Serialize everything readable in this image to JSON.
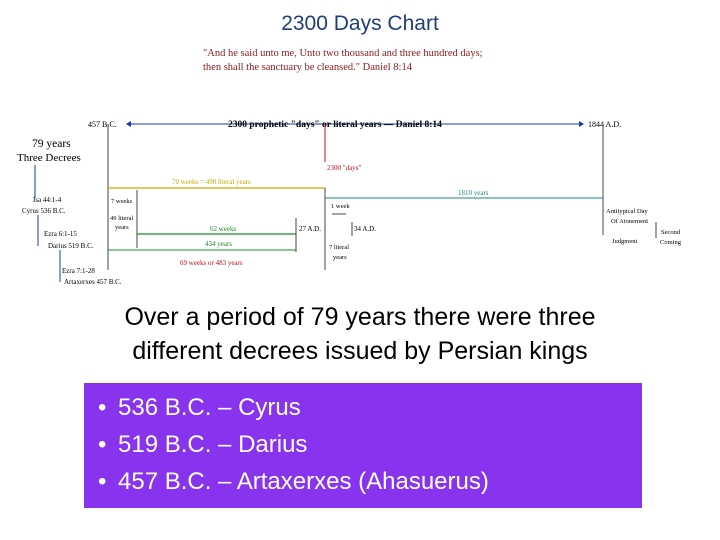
{
  "title": "2300 Days Chart",
  "quote": {
    "line1": "\"And he said unto me, Unto two thousand and three hundred days;",
    "line2": "then shall the sanctuary be cleansed.\" Daniel 8:14"
  },
  "diagram": {
    "start_label": "457 B.C.",
    "heading": "2300 prophetic \"days\" or literal years — Daniel  8:14",
    "end_label": "1844 A.D.",
    "years_label": "79 years",
    "decrees_label": "Three Decrees",
    "isa_ref": "Isa 44:1-4",
    "cyrus": "Cyrus 536 B.C.",
    "ezra_1": "Ezra 6:1-15",
    "darius": "Darius 519 B.C.",
    "ezra_2": "Ezra 7:1-28",
    "artaxerxes": "Artaxerxes 457 B.C.",
    "days_2300": "2300 \"days\"",
    "weeks_70": "70 weeks = 490 literal years",
    "years_1810": "1810 years",
    "weeks_7": "7 weeks",
    "years_49a": "49 literal",
    "years_49b": "years",
    "weeks_62": "62 weeks",
    "years_434": "434 years",
    "weeks_69": "69 weeks or 483 years",
    "ad_27": "27 A.D.",
    "ad_34": "34 A.D.",
    "week_1": "1 week",
    "literal_7a": "7 literal",
    "literal_7b": "years",
    "antitypical_a": "Antitypical Day",
    "antitypical_b": "Of Atonement",
    "second_a": "Second",
    "second_b": "Coming",
    "judgment": "Judgment"
  },
  "caption": {
    "line1": "Over a period of 79 years there were three",
    "line2": "different decrees issued by Persian kings"
  },
  "decrees": [
    "536 B.C. – Cyrus",
    "519 B.C. – Darius",
    "457 B.C. – Artaxerxes (Ahasuerus)"
  ],
  "colors": {
    "title": "#1f3d7a",
    "quote": "#8b1a1a",
    "box": "#8833ee",
    "blue_line": "#1a3aa8",
    "gold_line": "#c9a800",
    "green_line": "#1a8a2a",
    "red_text": "#c0101a",
    "teal_line": "#1a8a8a"
  }
}
